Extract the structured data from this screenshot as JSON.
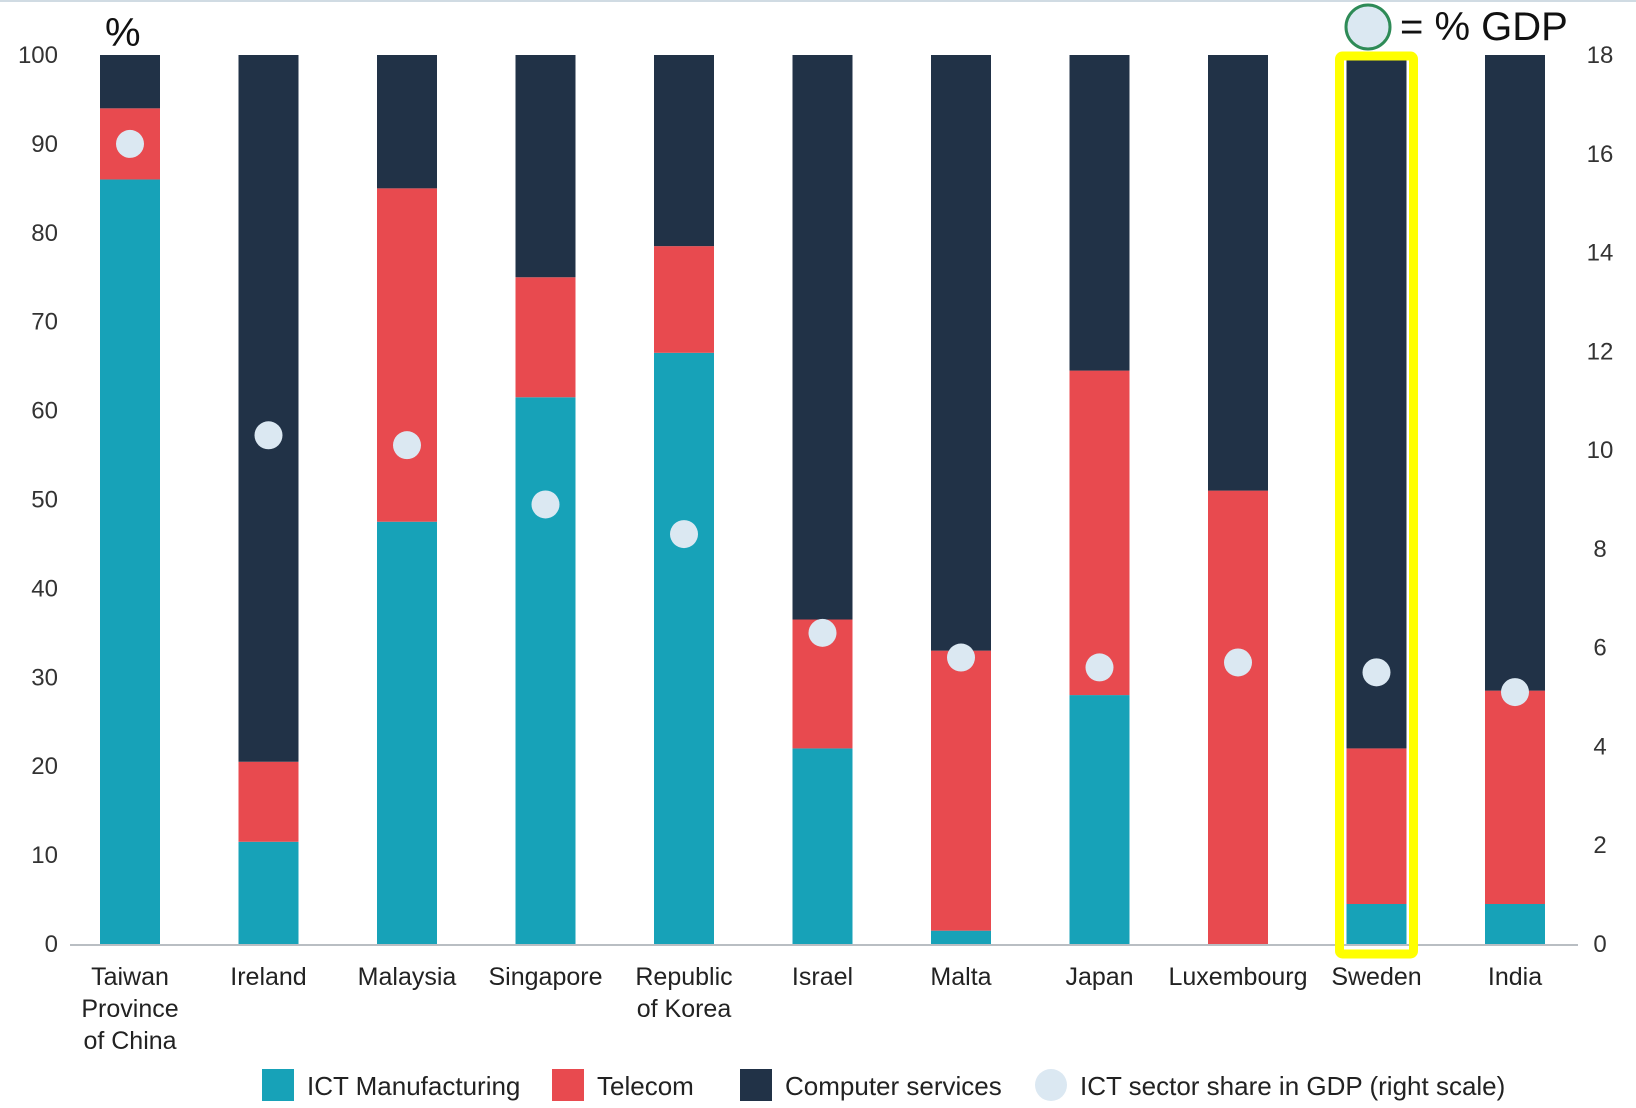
{
  "chart_data": {
    "type": "bar",
    "stacked": true,
    "left_axis_unit": "%",
    "categories": [
      [
        "Taiwan",
        "Province",
        "of China"
      ],
      [
        "Ireland"
      ],
      [
        "Malaysia"
      ],
      [
        "Singapore"
      ],
      [
        "Republic",
        "of Korea"
      ],
      [
        "Israel"
      ],
      [
        "Malta"
      ],
      [
        "Japan"
      ],
      [
        "Luxembourg"
      ],
      [
        "Sweden"
      ],
      [
        "India"
      ]
    ],
    "series": [
      {
        "name": "ICT Manufacturing",
        "color": "#17a2b8",
        "values": [
          86,
          11.5,
          47.5,
          61.5,
          66.5,
          22,
          1.5,
          28,
          0,
          4.5,
          4.5
        ]
      },
      {
        "name": "Telecom",
        "color": "#e84a4f",
        "values": [
          8,
          9,
          37.5,
          13.5,
          12,
          14.5,
          31.5,
          36.5,
          51,
          17.5,
          24
        ]
      },
      {
        "name": "Computer services",
        "color": "#213247",
        "values": [
          6,
          79.5,
          15,
          25,
          21.5,
          63.5,
          67,
          35.5,
          49,
          78,
          71.5
        ]
      }
    ],
    "gdp_share": {
      "name": "ICT sector share in GDP (right scale)",
      "color": "#dbe8f2",
      "values": [
        16.2,
        10.3,
        10.1,
        8.9,
        8.3,
        6.3,
        5.8,
        5.6,
        5.7,
        5.5,
        5.1
      ]
    },
    "left_ylim": [
      0,
      100
    ],
    "left_yticks": [
      0,
      10,
      20,
      30,
      40,
      50,
      60,
      70,
      80,
      90,
      100
    ],
    "right_ylim": [
      0,
      18
    ],
    "right_yticks": [
      0,
      2,
      4,
      6,
      8,
      10,
      12,
      14,
      16,
      18
    ],
    "highlight": {
      "category_index": 9,
      "color": "#ffff00"
    },
    "annotation": {
      "text": "= % GDP",
      "marker_color": "#dbe8f2",
      "marker_stroke": "#2e8b57"
    }
  }
}
